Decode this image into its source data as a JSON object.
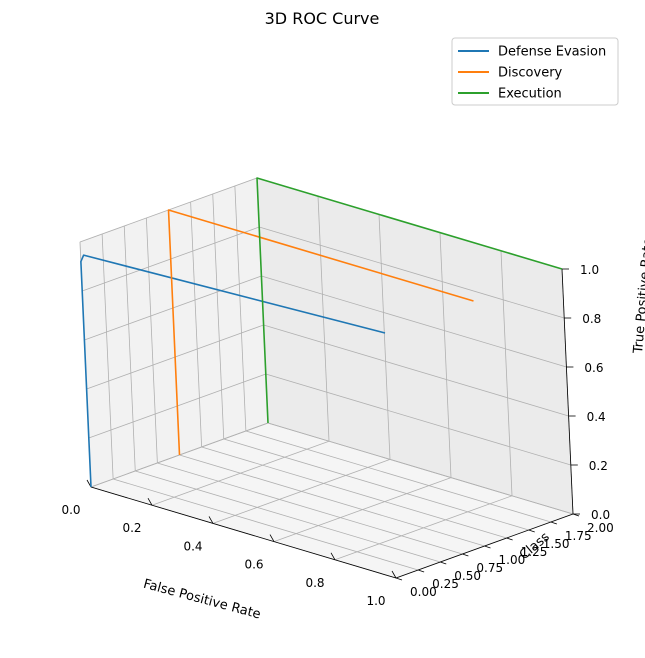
{
  "chart_data": {
    "type": "line",
    "projection": "3d",
    "title": "3D ROC Curve",
    "xlabel": "False Positive Rate",
    "ylabel": "Class",
    "zlabel": "True Positive Rate",
    "xlim": [
      0,
      1
    ],
    "ylim": [
      0,
      2
    ],
    "zlim": [
      0,
      1
    ],
    "grid": true,
    "legend_position": "top-right",
    "x_ticks": [
      {
        "v": 0,
        "label": "0.0"
      },
      {
        "v": 0.2,
        "label": "0.2"
      },
      {
        "v": 0.4,
        "label": "0.4"
      },
      {
        "v": 0.6,
        "label": "0.6"
      },
      {
        "v": 0.8,
        "label": "0.8"
      },
      {
        "v": 1.0,
        "label": "1.0"
      }
    ],
    "y_ticks": [
      {
        "v": 0,
        "label": "0.00"
      },
      {
        "v": 0.25,
        "label": "0.25"
      },
      {
        "v": 0.5,
        "label": "0.50"
      },
      {
        "v": 0.75,
        "label": "0.75"
      },
      {
        "v": 1.0,
        "label": "1.00"
      },
      {
        "v": 1.25,
        "label": "1.25"
      },
      {
        "v": 1.5,
        "label": "1.50"
      },
      {
        "v": 1.75,
        "label": "1.75"
      },
      {
        "v": 2.0,
        "label": "2.00"
      }
    ],
    "z_ticks": [
      {
        "v": 0,
        "label": "0.0"
      },
      {
        "v": 0.2,
        "label": "0.2"
      },
      {
        "v": 0.4,
        "label": "0.4"
      },
      {
        "v": 0.6,
        "label": "0.6"
      },
      {
        "v": 0.8,
        "label": "0.8"
      },
      {
        "v": 1.0,
        "label": "1.0"
      }
    ],
    "series": [
      {
        "name": "Defense Evasion",
        "color": "#1f77b4",
        "class": 0,
        "points": [
          [
            0,
            0
          ],
          [
            0.0,
            0.5
          ],
          [
            0.0,
            0.92
          ],
          [
            0.01,
            0.95
          ],
          [
            1.0,
            1.0
          ]
        ]
      },
      {
        "name": "Discovery",
        "color": "#ff7f0e",
        "class": 1,
        "points": [
          [
            0,
            0
          ],
          [
            0.0,
            0.55
          ],
          [
            0.0,
            1.0
          ],
          [
            1.0,
            1.0
          ]
        ]
      },
      {
        "name": "Execution",
        "color": "#2ca02c",
        "class": 2,
        "points": [
          [
            0,
            0
          ],
          [
            0.0,
            0.6
          ],
          [
            0.0,
            1.0
          ],
          [
            1.0,
            1.0
          ]
        ]
      }
    ]
  }
}
